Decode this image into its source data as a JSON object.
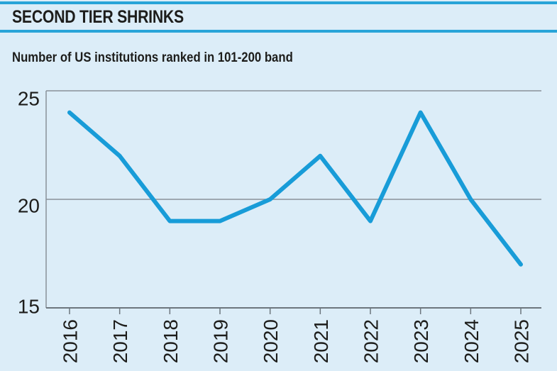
{
  "header": {
    "title": "SECOND TIER SHRINKS"
  },
  "subtitle": "Number of US institutions ranked in 101-200 band",
  "colors": {
    "background": "#dcedf8",
    "accent_rule": "#29a4d8",
    "line": "#189cd8",
    "axis_gray": "#8a9299",
    "axis_dark": "#6d767e",
    "text": "#1d1d1b"
  },
  "chart_data": {
    "type": "line",
    "title": "SECOND TIER SHRINKS",
    "subtitle": "Number of US institutions ranked in 101-200 band",
    "x": [
      "2016",
      "2017",
      "2018",
      "2019",
      "2020",
      "2021",
      "2022",
      "2023",
      "2024",
      "2025"
    ],
    "series": [
      {
        "name": "US institutions ranked in 101-200 band",
        "values": [
          24,
          22,
          19,
          19,
          20,
          22,
          19,
          24,
          20,
          17
        ]
      }
    ],
    "xlabel": "",
    "ylabel": "",
    "ylim": [
      15,
      25
    ],
    "yticks": [
      15,
      20,
      25
    ],
    "grid": "horizontal line at 20 and top border at 25; no vertical gridlines",
    "legend": "none",
    "line_color": "#189cd8",
    "x_tick_label_rotation_deg": -90
  }
}
